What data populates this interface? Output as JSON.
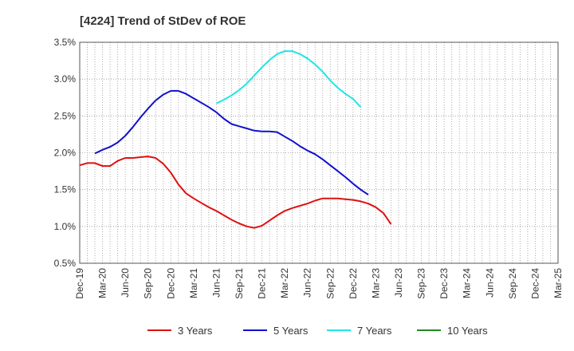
{
  "chart_data": {
    "type": "line",
    "title": "[4224]  Trend of StDev of ROE",
    "xlabel": "",
    "ylabel": "",
    "x_ticks": [
      "Dec-19",
      "Mar-20",
      "Jun-20",
      "Sep-20",
      "Dec-20",
      "Mar-21",
      "Jun-21",
      "Sep-21",
      "Dec-21",
      "Mar-22",
      "Jun-22",
      "Sep-22",
      "Dec-22",
      "Mar-23",
      "Jun-23",
      "Sep-23",
      "Dec-23",
      "Mar-24",
      "Jun-24",
      "Sep-24",
      "Dec-24",
      "Mar-25"
    ],
    "y_ticks": [
      "0.5%",
      "1.0%",
      "1.5%",
      "2.0%",
      "2.5%",
      "3.0%",
      "3.5%"
    ],
    "ylim": [
      0.5,
      3.5
    ],
    "grid": true,
    "legend_position": "bottom",
    "series": [
      {
        "name": "3 Years",
        "color": "#dd1111",
        "x_start_index": 0,
        "values": [
          1.83,
          1.86,
          1.86,
          1.82,
          1.82,
          1.89,
          1.93,
          1.93,
          1.94,
          1.95,
          1.93,
          1.85,
          1.73,
          1.57,
          1.45,
          1.38,
          1.32,
          1.26,
          1.21,
          1.15,
          1.09,
          1.04,
          1.0,
          0.98,
          1.01,
          1.08,
          1.15,
          1.21,
          1.25,
          1.28,
          1.31,
          1.35,
          1.38,
          1.38,
          1.38,
          1.37,
          1.36,
          1.34,
          1.31,
          1.26,
          1.18,
          1.03
        ]
      },
      {
        "name": "5 Years",
        "color": "#1111cc",
        "x_start_index": 2,
        "values": [
          1.99,
          2.04,
          2.08,
          2.14,
          2.23,
          2.35,
          2.48,
          2.6,
          2.71,
          2.79,
          2.84,
          2.84,
          2.8,
          2.74,
          2.68,
          2.62,
          2.55,
          2.46,
          2.39,
          2.36,
          2.33,
          2.3,
          2.29,
          2.29,
          2.28,
          2.22,
          2.16,
          2.09,
          2.03,
          1.98,
          1.91,
          1.83,
          1.75,
          1.67,
          1.58,
          1.5,
          1.43
        ]
      },
      {
        "name": "7 Years",
        "color": "#22e5e5",
        "x_start_index": 18,
        "values": [
          2.67,
          2.72,
          2.78,
          2.85,
          2.94,
          3.05,
          3.16,
          3.26,
          3.34,
          3.38,
          3.38,
          3.34,
          3.28,
          3.2,
          3.1,
          2.98,
          2.88,
          2.8,
          2.73,
          2.62
        ]
      },
      {
        "name": "10 Years",
        "color": "#228822",
        "x_start_index": 0,
        "values": []
      }
    ]
  }
}
